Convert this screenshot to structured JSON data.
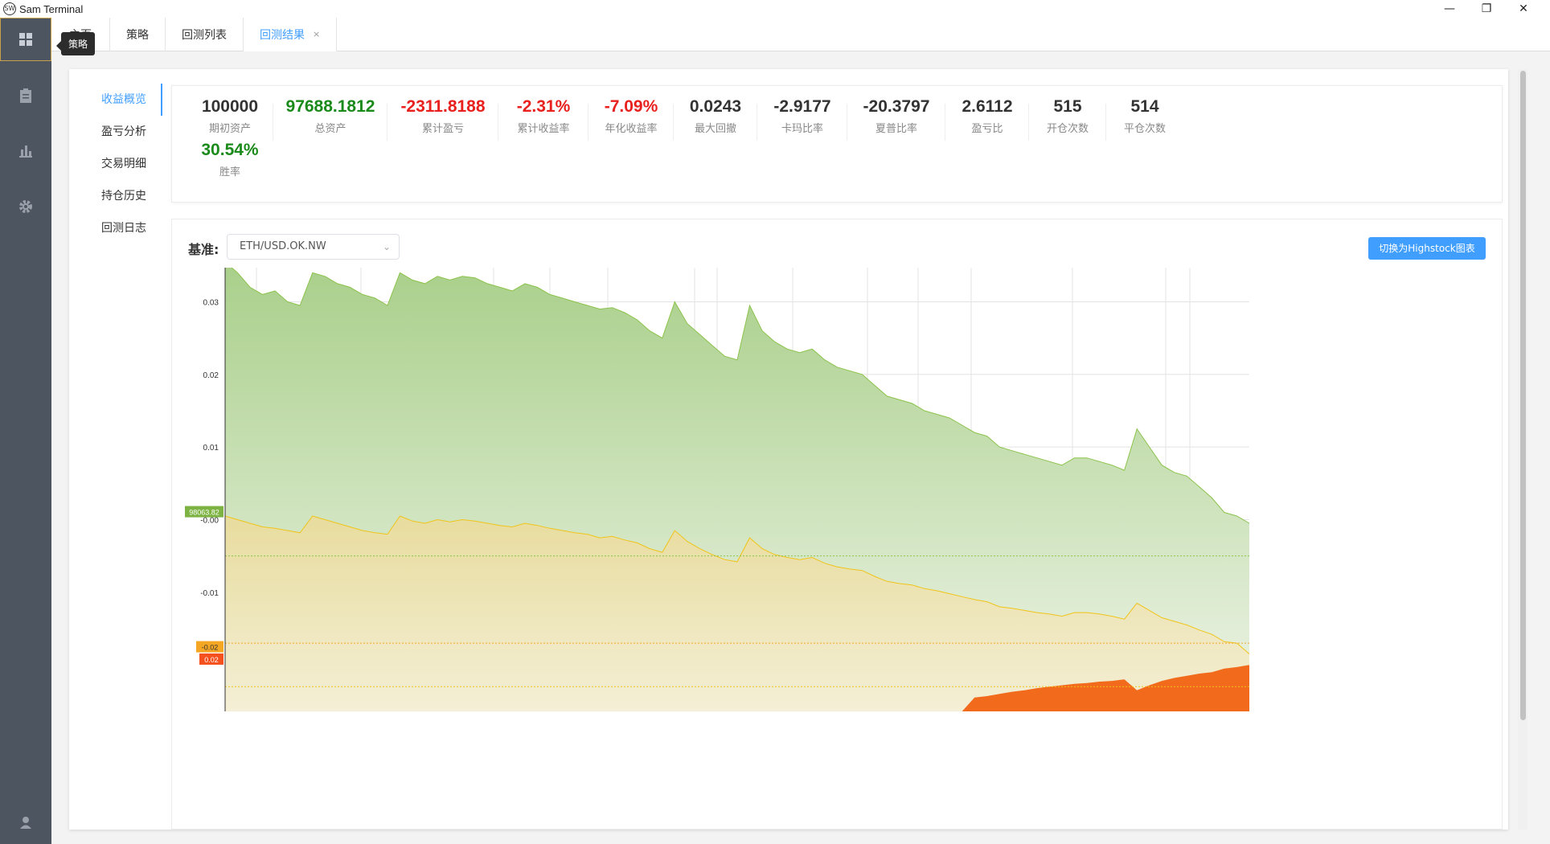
{
  "app": {
    "title": "Sam Terminal",
    "logo_text": "SW"
  },
  "window": {
    "minimize": "—",
    "restore": "❐",
    "close": "✕"
  },
  "sidebar": {
    "tooltip": "策略",
    "icons": [
      "grid-icon",
      "clipboard-icon",
      "bar-chart-icon",
      "gear-icon",
      "user-icon"
    ]
  },
  "tabs": [
    {
      "label": "主页"
    },
    {
      "label": "策略"
    },
    {
      "label": "回测列表"
    },
    {
      "label": "回测结果",
      "close": "×"
    }
  ],
  "leftnav": [
    "收益概览",
    "盈亏分析",
    "交易明细",
    "持仓历史",
    "回测日志"
  ],
  "stats": [
    {
      "value": "100000",
      "label": "期初资产",
      "color": "#333333"
    },
    {
      "value": "97688.1812",
      "label": "总资产",
      "color": "#1a8a1a"
    },
    {
      "value": "-2311.8188",
      "label": "累计盈亏",
      "color": "#e8201e"
    },
    {
      "value": "-2.31%",
      "label": "累计收益率",
      "color": "#e8201e"
    },
    {
      "value": "-7.09%",
      "label": "年化收益率",
      "color": "#e8201e"
    },
    {
      "value": "0.0243",
      "label": "最大回撤",
      "color": "#333333"
    },
    {
      "value": "-2.9177",
      "label": "卡玛比率",
      "color": "#333333"
    },
    {
      "value": "-20.3797",
      "label": "夏普比率",
      "color": "#333333"
    },
    {
      "value": "2.6112",
      "label": "盈亏比",
      "color": "#333333"
    },
    {
      "value": "515",
      "label": "开仓次数",
      "color": "#333333"
    },
    {
      "value": "514",
      "label": "平仓次数",
      "color": "#333333"
    },
    {
      "value": "30.54%",
      "label": "胜率",
      "color": "#1a8a1a"
    }
  ],
  "benchmark": {
    "label": "基准:",
    "value": "ETH/USD.OK.NW",
    "switch_button": "切换为Highstock图表"
  },
  "chart_data": {
    "type": "area",
    "y_ticks": [
      "0.03",
      "0.02",
      "0.01",
      "-0.00",
      "-0.01"
    ],
    "ylim": [
      -0.025,
      0.035
    ],
    "tags": [
      {
        "text": "98063.82",
        "color": "#7cb342"
      },
      {
        "text": "-0.02",
        "color": "#f5a623"
      },
      {
        "text": "0.02",
        "color": "#f4511e"
      }
    ],
    "colors": {
      "equity": "#8bc34a",
      "benchmark": "#f0c419",
      "drawdown": "#f26b1d"
    },
    "series": [
      {
        "key": "equity",
        "values": [
          0.0355,
          0.034,
          0.032,
          0.031,
          0.0315,
          0.03,
          0.0295,
          0.034,
          0.0335,
          0.0325,
          0.032,
          0.031,
          0.0305,
          0.0295,
          0.034,
          0.033,
          0.0325,
          0.0335,
          0.033,
          0.0335,
          0.0333,
          0.0325,
          0.032,
          0.0315,
          0.0325,
          0.032,
          0.031,
          0.0305,
          0.03,
          0.0295,
          0.029,
          0.0292,
          0.0285,
          0.0275,
          0.026,
          0.025,
          0.03,
          0.027,
          0.0255,
          0.024,
          0.0225,
          0.022,
          0.0295,
          0.026,
          0.0245,
          0.0235,
          0.023,
          0.0235,
          0.022,
          0.021,
          0.0205,
          0.02,
          0.0185,
          0.017,
          0.0165,
          0.016,
          0.015,
          0.0145,
          0.014,
          0.013,
          0.012,
          0.0115,
          0.01,
          0.0095,
          0.009,
          0.0085,
          0.008,
          0.0075,
          0.0085,
          0.0085,
          0.008,
          0.0075,
          0.0068,
          0.0125,
          0.01,
          0.0075,
          0.0065,
          0.006,
          0.0045,
          0.003,
          0.001,
          0.0005,
          -0.0005
        ]
      },
      {
        "key": "benchmark",
        "values": [
          0.0005,
          0.0,
          -0.0005,
          -0.001,
          -0.0012,
          -0.0015,
          -0.0018,
          0.0005,
          0.0,
          -0.0005,
          -0.001,
          -0.0015,
          -0.0018,
          -0.002,
          0.0005,
          -0.0002,
          -0.0005,
          0.0,
          -0.0003,
          0.0,
          -0.0002,
          -0.0005,
          -0.0008,
          -0.001,
          -0.0005,
          -0.0008,
          -0.0012,
          -0.0015,
          -0.0018,
          -0.002,
          -0.0025,
          -0.0023,
          -0.0028,
          -0.0032,
          -0.004,
          -0.0045,
          -0.0015,
          -0.003,
          -0.004,
          -0.0048,
          -0.0055,
          -0.0058,
          -0.0025,
          -0.004,
          -0.0048,
          -0.0052,
          -0.0055,
          -0.0052,
          -0.006,
          -0.0065,
          -0.0068,
          -0.007,
          -0.0078,
          -0.0085,
          -0.0088,
          -0.009,
          -0.0095,
          -0.0098,
          -0.0102,
          -0.0106,
          -0.011,
          -0.0113,
          -0.012,
          -0.0122,
          -0.0125,
          -0.0128,
          -0.013,
          -0.0133,
          -0.0128,
          -0.0128,
          -0.013,
          -0.0133,
          -0.0137,
          -0.0115,
          -0.0125,
          -0.0135,
          -0.014,
          -0.0145,
          -0.0152,
          -0.0158,
          -0.0168,
          -0.017,
          -0.0185
        ]
      },
      {
        "key": "drawdown",
        "values": [
          -0.03,
          -0.03,
          -0.03,
          -0.03,
          -0.03,
          -0.03,
          -0.03,
          -0.03,
          -0.03,
          -0.03,
          -0.03,
          -0.03,
          -0.03,
          -0.03,
          -0.03,
          -0.03,
          -0.03,
          -0.03,
          -0.03,
          -0.03,
          -0.03,
          -0.03,
          -0.03,
          -0.03,
          -0.03,
          -0.03,
          -0.03,
          -0.03,
          -0.03,
          -0.03,
          -0.03,
          -0.03,
          -0.03,
          -0.03,
          -0.03,
          -0.03,
          -0.03,
          -0.03,
          -0.03,
          -0.03,
          -0.03,
          -0.03,
          -0.03,
          -0.03,
          -0.03,
          -0.03,
          -0.03,
          -0.03,
          -0.03,
          -0.03,
          -0.03,
          -0.03,
          -0.03,
          -0.03,
          -0.03,
          -0.03,
          -0.03,
          -0.03,
          -0.03,
          -0.03,
          -0.0245,
          -0.0243,
          -0.024,
          -0.0237,
          -0.0235,
          -0.0232,
          -0.023,
          -0.0228,
          -0.0226,
          -0.0225,
          -0.0223,
          -0.0222,
          -0.022,
          -0.0235,
          -0.0228,
          -0.0222,
          -0.0218,
          -0.0215,
          -0.0212,
          -0.021,
          -0.0205,
          -0.0203,
          -0.02
        ]
      }
    ]
  }
}
